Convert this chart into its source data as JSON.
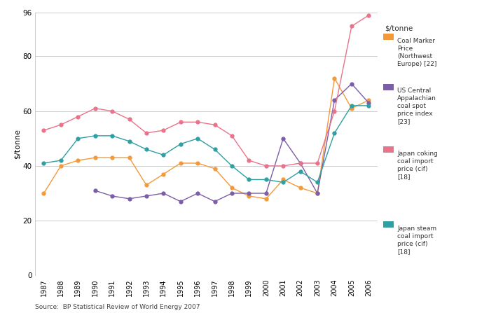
{
  "years": [
    1987,
    1988,
    1989,
    1990,
    1991,
    1992,
    1993,
    1994,
    1995,
    1996,
    1997,
    1998,
    1999,
    2000,
    2001,
    2002,
    2003,
    2004,
    2005,
    2006
  ],
  "coal_marker_nw_europe": [
    30,
    40,
    42,
    43,
    43,
    43,
    33,
    37,
    41,
    41,
    39,
    32,
    29,
    28,
    35,
    32,
    30,
    72,
    61,
    64
  ],
  "us_central_appalachian": [
    null,
    null,
    null,
    31,
    29,
    28,
    29,
    30,
    27,
    30,
    27,
    30,
    30,
    30,
    50,
    41,
    30,
    64,
    70,
    63
  ],
  "japan_coking_coal": [
    53,
    55,
    58,
    61,
    60,
    57,
    52,
    53,
    56,
    56,
    55,
    51,
    42,
    40,
    40,
    41,
    41,
    60,
    91,
    95
  ],
  "japan_steam_coal": [
    41,
    42,
    50,
    51,
    51,
    49,
    46,
    44,
    48,
    50,
    46,
    40,
    35,
    35,
    34,
    38,
    34,
    52,
    62,
    62
  ],
  "colors": {
    "coal_marker_nw_europe": "#f4993a",
    "us_central_appalachian": "#7b5ea7",
    "japan_coking_coal": "#e8738a",
    "japan_steam_coal": "#2e9fa3"
  },
  "legend_labels": {
    "coal_marker_nw_europe": "Coal Marker\nPrice\n(Northwest\nEurope) [22]",
    "us_central_appalachian": "US Central\nAppalachian\ncoal spot\nprice index\n[23]",
    "japan_coking_coal": "Japan coking\ncoal import\nprice (cif)\n[18]",
    "japan_steam_coal": "Japan steam\ncoal import\nprice (cif)\n[18]"
  },
  "ylabel": "$/tonne",
  "legend_title": "$/tonne",
  "ylim": [
    0,
    96
  ],
  "yticks": [
    0,
    20,
    40,
    60,
    80,
    96
  ],
  "source_text": "Source:  BP Statistical Review of World Energy 2007",
  "background_color": "#ffffff",
  "grid_color": "#cccccc"
}
